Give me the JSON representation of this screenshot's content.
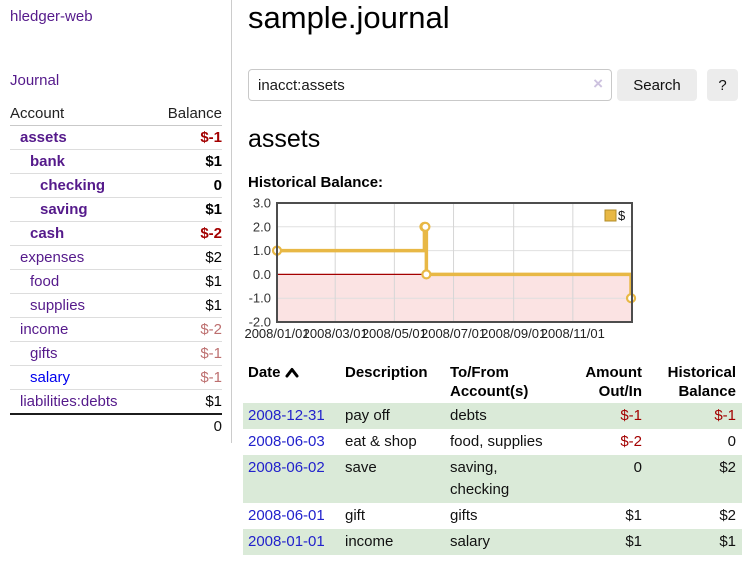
{
  "sidebar": {
    "app_title": "hledger-web",
    "journal_link": "Journal",
    "accounts": {
      "account_header": "Account",
      "balance_header": "Balance",
      "rows": [
        {
          "name": "assets",
          "indent": 1,
          "bold": true,
          "link_color": "purple",
          "balance": "$-1",
          "balance_style": "neg-strong"
        },
        {
          "name": "bank",
          "indent": 2,
          "bold": true,
          "link_color": "purple",
          "balance": "$1",
          "balance_style": "pos"
        },
        {
          "name": "checking",
          "indent": 3,
          "bold": true,
          "link_color": "purple",
          "balance": "0",
          "balance_style": "pos"
        },
        {
          "name": "saving",
          "indent": 3,
          "bold": true,
          "link_color": "purple",
          "balance": "$1",
          "balance_style": "pos"
        },
        {
          "name": "cash",
          "indent": 2,
          "bold": true,
          "link_color": "purple",
          "balance": "$-2",
          "balance_style": "neg-strong"
        },
        {
          "name": "expenses",
          "indent": 1,
          "bold": false,
          "link_color": "purple",
          "balance": "$2",
          "balance_style": "pos"
        },
        {
          "name": "food",
          "indent": 2,
          "bold": false,
          "link_color": "purple",
          "balance": "$1",
          "balance_style": "pos"
        },
        {
          "name": "supplies",
          "indent": 2,
          "bold": false,
          "link_color": "purple",
          "balance": "$1",
          "balance_style": "pos"
        },
        {
          "name": "income",
          "indent": 1,
          "bold": false,
          "link_color": "purple",
          "balance": "$-2",
          "balance_style": "neg-soft"
        },
        {
          "name": "gifts",
          "indent": 2,
          "bold": false,
          "link_color": "purple",
          "balance": "$-1",
          "balance_style": "neg-soft"
        },
        {
          "name": "salary",
          "indent": 2,
          "bold": false,
          "link_color": "blue",
          "balance": "$-1",
          "balance_style": "neg-soft"
        },
        {
          "name": "liabilities:debts",
          "indent": 1,
          "bold": false,
          "link_color": "purple",
          "balance": "$1",
          "balance_style": "pos"
        }
      ],
      "total": "0"
    }
  },
  "header": {
    "title": "sample.journal"
  },
  "search": {
    "query": "inacct:assets",
    "search_button": "Search",
    "help_button": "?"
  },
  "icons": {
    "clear_search": "×",
    "date_sort": "chevron-up"
  },
  "account_page": {
    "heading": "assets",
    "chart_label": "Historical Balance:"
  },
  "chart_data": {
    "type": "line",
    "title": "Historical Balance",
    "step": true,
    "series": [
      {
        "name": "$",
        "points": [
          [
            "2008-01-01",
            1
          ],
          [
            "2008-06-01",
            2
          ],
          [
            "2008-06-02",
            2
          ],
          [
            "2008-06-03",
            0
          ],
          [
            "2008-12-31",
            -1
          ]
        ]
      }
    ],
    "x_range": [
      "2008-01-01",
      "2009-01-01"
    ],
    "x_ticks": [
      {
        "date": "2008-01-01",
        "label": "2008/01/01"
      },
      {
        "date": "2008-03-01",
        "label": "2008/03/01"
      },
      {
        "date": "2008-05-01",
        "label": "2008/05/01"
      },
      {
        "date": "2008-07-01",
        "label": "2008/07/01"
      },
      {
        "date": "2008-09-01",
        "label": "2008/09/01"
      },
      {
        "date": "2008-11-01",
        "label": "2008/11/01"
      }
    ],
    "ylim": [
      -2,
      3
    ],
    "y_ticks": [
      3,
      2,
      1,
      0,
      -1,
      -2
    ],
    "legend": {
      "label": "$",
      "position": "top-right"
    },
    "grid": true,
    "colors": {
      "line": "#e8b845",
      "marker_fill": "#ffffff",
      "legend_border": "#b28c28",
      "negative_region": "#fbe3e3",
      "zero_line": "#a40000",
      "border": "#4d4d4d",
      "gridline": "#d6d6d6"
    }
  },
  "register": {
    "headers": [
      "Date",
      "Description",
      "To/From Account(s)",
      "Amount Out/In",
      "Historical Balance"
    ],
    "rows": [
      {
        "date": "2008-12-31",
        "description": "pay off",
        "accounts": [
          "debts"
        ],
        "amount": "$-1",
        "amount_neg": true,
        "balance": "$-1",
        "balance_neg": true,
        "shaded": true
      },
      {
        "date": "2008-06-03",
        "description": "eat & shop",
        "accounts": [
          "food, supplies"
        ],
        "amount": "$-2",
        "amount_neg": true,
        "balance": "0",
        "balance_neg": false,
        "shaded": false
      },
      {
        "date": "2008-06-02",
        "description": "save",
        "accounts": [
          "saving,",
          "checking"
        ],
        "amount": "0",
        "amount_neg": false,
        "balance": "$2",
        "balance_neg": false,
        "shaded": true
      },
      {
        "date": "2008-06-01",
        "description": "gift",
        "accounts": [
          "gifts"
        ],
        "amount": "$1",
        "amount_neg": false,
        "balance": "$2",
        "balance_neg": false,
        "shaded": false
      },
      {
        "date": "2008-01-01",
        "description": "income",
        "accounts": [
          "salary"
        ],
        "amount": "$1",
        "amount_neg": false,
        "balance": "$1",
        "balance_neg": false,
        "shaded": true
      }
    ]
  },
  "colors": {
    "visited_link_purple": "#551a8b",
    "link_blue": "#0000ee",
    "date_link_blue": "#2222cc",
    "negative_strong": "#a30000",
    "negative_soft": "#bd6f6f",
    "row_stripe_green": "#daead8",
    "button_gray": "#ececec"
  }
}
